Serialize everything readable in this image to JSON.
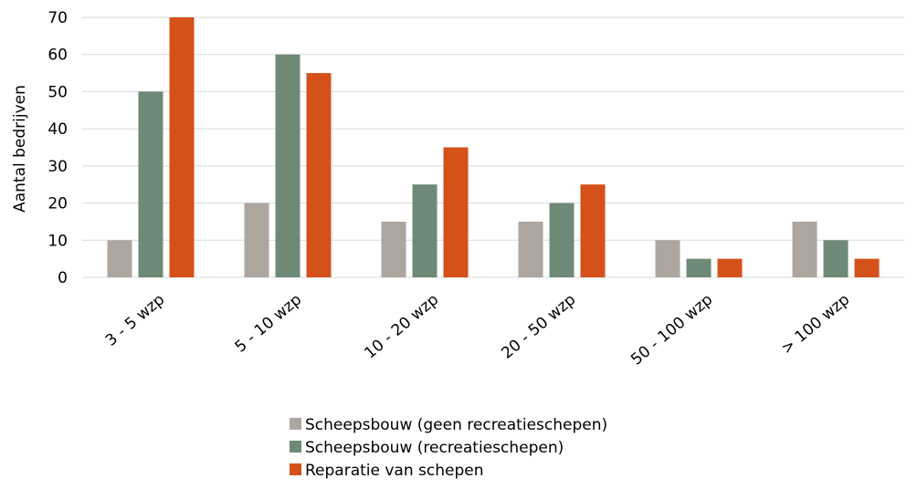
{
  "chart_data": {
    "type": "bar",
    "title": "",
    "xlabel": "",
    "ylabel": "Aantal bedrijven",
    "ylim": [
      0,
      70
    ],
    "yticks": [
      0,
      10,
      20,
      30,
      40,
      50,
      60,
      70
    ],
    "grid": true,
    "legend_position": "bottom",
    "categories": [
      "3 - 5 wzp",
      "5 - 10 wzp",
      "10 - 20 wzp",
      "20 - 50 wzp",
      "50 - 100 wzp",
      "> 100 wzp"
    ],
    "series": [
      {
        "name": "Scheepsbouw (geen recreatieschepen)",
        "color": "#ada69f",
        "values": [
          10,
          20,
          15,
          15,
          10,
          15
        ]
      },
      {
        "name": "Scheepsbouw (recreatieschepen)",
        "color": "#6e8a76",
        "values": [
          50,
          60,
          25,
          20,
          5,
          10
        ]
      },
      {
        "name": "Reparatie van schepen",
        "color": "#d4511a",
        "values": [
          70,
          55,
          35,
          25,
          5,
          5
        ]
      }
    ]
  }
}
